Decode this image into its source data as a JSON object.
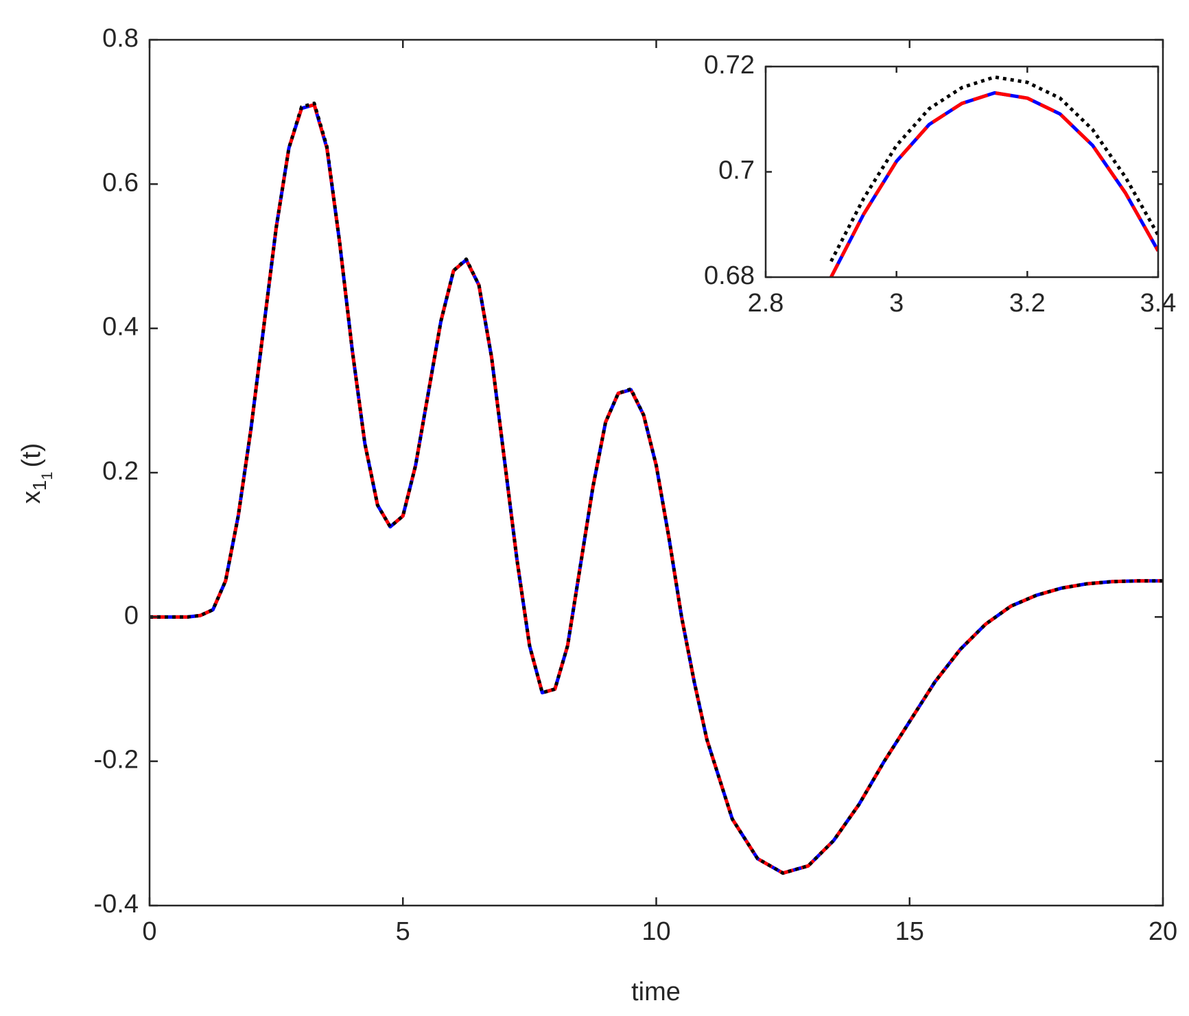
{
  "chart_data": [
    {
      "type": "line",
      "xlabel": "time",
      "ylabel": {
        "base": "x",
        "sub": "1",
        "subsub": "1",
        "rest": "(t)"
      },
      "x": [
        0,
        0.25,
        0.5,
        0.75,
        1,
        1.25,
        1.5,
        1.75,
        2,
        2.25,
        2.5,
        2.75,
        3,
        3.25,
        3.5,
        3.75,
        4,
        4.25,
        4.5,
        4.75,
        5,
        5.25,
        5.5,
        5.75,
        6,
        6.25,
        6.5,
        6.75,
        7,
        7.25,
        7.5,
        7.75,
        8,
        8.25,
        8.5,
        8.75,
        9,
        9.25,
        9.5,
        9.75,
        10,
        10.25,
        10.5,
        10.75,
        11,
        11.5,
        12,
        12.5,
        13,
        13.5,
        14,
        14.5,
        15,
        15.5,
        16,
        16.5,
        17,
        17.5,
        18,
        18.5,
        19,
        19.5,
        20
      ],
      "series": [
        {
          "color": "#0000ff",
          "linestyle": "solid",
          "values": [
            0,
            0,
            0,
            0,
            0.002,
            0.01,
            0.05,
            0.14,
            0.26,
            0.4,
            0.54,
            0.65,
            0.705,
            0.71,
            0.65,
            0.52,
            0.37,
            0.24,
            0.155,
            0.125,
            0.14,
            0.21,
            0.31,
            0.41,
            0.48,
            0.495,
            0.46,
            0.36,
            0.22,
            0.08,
            -0.04,
            -0.105,
            -0.1,
            -0.04,
            0.07,
            0.18,
            0.27,
            0.31,
            0.315,
            0.28,
            0.21,
            0.11,
            0,
            -0.09,
            -0.17,
            -0.28,
            -0.335,
            -0.355,
            -0.345,
            -0.31,
            -0.26,
            -0.2,
            -0.145,
            -0.09,
            -0.045,
            -0.01,
            0.015,
            0.03,
            0.04,
            0.046,
            0.049,
            0.05,
            0.05
          ]
        },
        {
          "color": "#ff0000",
          "linestyle": "dashed",
          "values": [
            0,
            0,
            0,
            0,
            0.002,
            0.01,
            0.05,
            0.14,
            0.26,
            0.4,
            0.54,
            0.65,
            0.705,
            0.71,
            0.65,
            0.52,
            0.37,
            0.24,
            0.155,
            0.125,
            0.14,
            0.21,
            0.31,
            0.41,
            0.48,
            0.495,
            0.46,
            0.36,
            0.22,
            0.08,
            -0.04,
            -0.105,
            -0.1,
            -0.04,
            0.07,
            0.18,
            0.27,
            0.31,
            0.315,
            0.28,
            0.21,
            0.11,
            0,
            -0.09,
            -0.17,
            -0.28,
            -0.335,
            -0.355,
            -0.345,
            -0.31,
            -0.26,
            -0.2,
            -0.145,
            -0.09,
            -0.045,
            -0.01,
            0.015,
            0.03,
            0.04,
            0.046,
            0.049,
            0.05,
            0.05
          ]
        },
        {
          "color": "#000000",
          "linestyle": "dotted",
          "values": [
            0,
            0,
            0,
            0,
            0.002,
            0.01,
            0.05,
            0.14,
            0.26,
            0.4,
            0.54,
            0.65,
            0.707,
            0.712,
            0.652,
            0.52,
            0.37,
            0.24,
            0.155,
            0.125,
            0.14,
            0.21,
            0.31,
            0.41,
            0.48,
            0.496,
            0.46,
            0.36,
            0.22,
            0.08,
            -0.04,
            -0.105,
            -0.1,
            -0.04,
            0.07,
            0.18,
            0.27,
            0.31,
            0.316,
            0.28,
            0.21,
            0.11,
            0,
            -0.09,
            -0.17,
            -0.28,
            -0.335,
            -0.355,
            -0.345,
            -0.31,
            -0.26,
            -0.2,
            -0.145,
            -0.09,
            -0.045,
            -0.01,
            0.015,
            0.03,
            0.04,
            0.046,
            0.049,
            0.05,
            0.05
          ]
        }
      ],
      "xlim": [
        0,
        20
      ],
      "xticks": [
        0,
        5,
        10,
        15,
        20
      ],
      "ylim": [
        -0.4,
        0.8
      ],
      "yticks": [
        -0.4,
        -0.2,
        0,
        0.2,
        0.4,
        0.6,
        0.8
      ]
    },
    {
      "type": "line",
      "x": [
        2.9,
        2.95,
        3,
        3.05,
        3.1,
        3.15,
        3.2,
        3.25,
        3.3,
        3.35,
        3.4
      ],
      "series": [
        {
          "color": "#0000ff",
          "linestyle": "solid",
          "values": [
            0.68,
            0.692,
            0.702,
            0.709,
            0.713,
            0.715,
            0.714,
            0.711,
            0.705,
            0.696,
            0.685
          ]
        },
        {
          "color": "#ff0000",
          "linestyle": "dashed",
          "values": [
            0.68,
            0.692,
            0.702,
            0.709,
            0.713,
            0.715,
            0.714,
            0.711,
            0.705,
            0.696,
            0.685
          ]
        },
        {
          "color": "#000000",
          "linestyle": "dotted",
          "values": [
            0.683,
            0.695,
            0.705,
            0.712,
            0.716,
            0.718,
            0.717,
            0.714,
            0.708,
            0.699,
            0.688
          ]
        }
      ],
      "xlim": [
        2.8,
        3.4
      ],
      "xticks": [
        2.8,
        3,
        3.2,
        3.4
      ],
      "ylim": [
        0.68,
        0.72
      ],
      "yticks": [
        0.68,
        0.7,
        0.72
      ]
    }
  ]
}
